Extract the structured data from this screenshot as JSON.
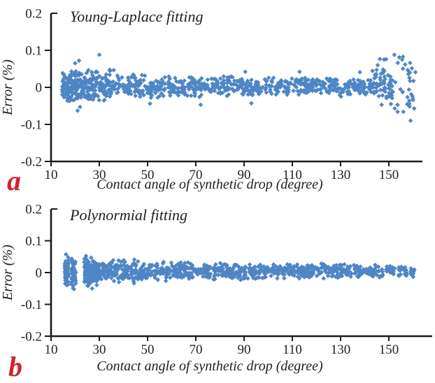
{
  "figure": {
    "background": "#ffffff",
    "colors": {
      "marker": "#4e86c5",
      "axis": "#1a1a1a",
      "text": "#1f1f1f",
      "corner_label_red": "#d2212b"
    },
    "panels": [
      {
        "id": "a",
        "corner_label": "a",
        "title": "Young-Laplace fitting",
        "x_axis": {
          "label": "Contact angle of synthetic drop (degree)",
          "tick_labels": [
            "10",
            "30",
            "50",
            "70",
            "90",
            "110",
            "130",
            "150"
          ],
          "tick_values": [
            10,
            30,
            50,
            70,
            90,
            110,
            130,
            150
          ]
        },
        "y_axis": {
          "label": "Error (%)",
          "tick_labels": [
            "0.2",
            "0.1",
            "0",
            "-0.1",
            "-0.2"
          ],
          "tick_values": [
            0.2,
            0.1,
            0,
            -0.1,
            -0.2
          ]
        }
      },
      {
        "id": "b",
        "corner_label": "b",
        "title": "Polynormial fitting",
        "x_axis": {
          "label": "Contact angle of synthetic drop (degree)",
          "tick_labels": [
            "10",
            "30",
            "50",
            "70",
            "90",
            "110",
            "130",
            "150"
          ],
          "tick_values": [
            10,
            30,
            50,
            70,
            90,
            110,
            130,
            150
          ]
        },
        "y_axis": {
          "label": "Error (%)",
          "tick_labels": [
            "0.2",
            "0.1",
            "0",
            "-0.1",
            "-0.2"
          ],
          "tick_values": [
            0.2,
            0.1,
            0,
            -0.1,
            -0.2
          ]
        }
      }
    ]
  },
  "chart_data": [
    {
      "panel": "a",
      "type": "scatter",
      "title": "Young-Laplace fitting",
      "xlabel": "Contact angle of synthetic drop (degree)",
      "ylabel": "Error (%)",
      "xlim": [
        10,
        162
      ],
      "ylim": [
        -0.2,
        0.2
      ],
      "x_tick_values": [
        10,
        30,
        50,
        70,
        90,
        110,
        130,
        150
      ],
      "x_tick_labels": [
        "10",
        "30",
        "50",
        "70",
        "90",
        "110",
        "130",
        "150"
      ],
      "y_tick_values": [
        0.2,
        0.1,
        0,
        -0.1,
        -0.2
      ],
      "y_tick_labels": [
        "0.2",
        "0.1",
        "0",
        "-0.1",
        "-0.2"
      ],
      "grid": false,
      "legend": false,
      "marker": "diamond",
      "marker_color": "#4e86c5",
      "series": [
        {
          "name": "Young-Laplace fitting error",
          "band_segments": [
            {
              "x": [
                14.3,
                20.8
              ],
              "y": [
                -0.045,
                0.048
              ],
              "n": 130,
              "stripes": 9
            },
            {
              "x": [
                20.8,
                36.0
              ],
              "y": [
                -0.042,
                0.05
              ],
              "n": 170
            },
            {
              "x": [
                36.0,
                60.0
              ],
              "y": [
                -0.033,
                0.038
              ],
              "n": 150
            },
            {
              "x": [
                60.0,
                100.0
              ],
              "y": [
                -0.028,
                0.032
              ],
              "n": 230
            },
            {
              "x": [
                100.0,
                143.0
              ],
              "y": [
                -0.026,
                0.03
              ],
              "n": 240
            },
            {
              "x": [
                143.0,
                151.5
              ],
              "y": [
                -0.04,
                0.055
              ],
              "n": 55
            },
            {
              "x": [
                146.0,
                161.0
              ],
              "y": [
                -0.068,
                0.085
              ],
              "n": 38,
              "uniform": true
            }
          ],
          "outliers": [
            [
              20.0,
              0.065
            ],
            [
              21.6,
              0.072
            ],
            [
              30.0,
              0.088
            ],
            [
              22.0,
              -0.053
            ],
            [
              21.0,
              -0.063
            ],
            [
              51.0,
              -0.044
            ],
            [
              72.0,
              -0.047
            ],
            [
              90.5,
              0.042
            ],
            [
              93.0,
              -0.043
            ],
            [
              113.0,
              0.042
            ],
            [
              138.0,
              0.041
            ],
            [
              152.3,
              0.088
            ],
            [
              148.0,
              0.075
            ],
            [
              155.5,
              0.075
            ],
            [
              145.4,
              0.06
            ],
            [
              158.8,
              0.066
            ],
            [
              161.0,
              0.041
            ],
            [
              153.6,
              -0.047
            ],
            [
              147.0,
              -0.047
            ],
            [
              156.0,
              -0.066
            ],
            [
              160.5,
              -0.057
            ],
            [
              160.0,
              -0.034
            ],
            [
              159.0,
              -0.09
            ]
          ]
        }
      ]
    },
    {
      "panel": "b",
      "type": "scatter",
      "title": "Polynormial fitting",
      "xlabel": "Contact angle of synthetic drop (degree)",
      "ylabel": "Error (%)",
      "xlim": [
        10,
        162
      ],
      "ylim": [
        -0.2,
        0.2
      ],
      "x_tick_values": [
        10,
        30,
        50,
        70,
        90,
        110,
        130,
        150
      ],
      "x_tick_labels": [
        "10",
        "30",
        "50",
        "70",
        "90",
        "110",
        "130",
        "150"
      ],
      "y_tick_values": [
        0.2,
        0.1,
        0,
        -0.1,
        -0.2
      ],
      "y_tick_labels": [
        "0.2",
        "0.1",
        "0",
        "-0.1",
        "-0.2"
      ],
      "grid": false,
      "legend": false,
      "marker": "diamond",
      "marker_color": "#4e86c5",
      "series": [
        {
          "name": "Polynomial fitting error",
          "band_segments": [
            {
              "x": [
                15.6,
                17.4
              ],
              "y": [
                -0.05,
                0.057
              ],
              "n": 65,
              "stripes": 3
            },
            {
              "x": [
                18.2,
                20.4
              ],
              "y": [
                -0.052,
                0.05
              ],
              "n": 60,
              "stripes": 3
            },
            {
              "x": [
                23.6,
                30.0
              ],
              "y": [
                -0.047,
                0.051
              ],
              "n": 150,
              "stripes": 9
            },
            {
              "x": [
                30.0,
                45.0
              ],
              "y": [
                -0.038,
                0.043
              ],
              "n": 150
            },
            {
              "x": [
                45.0,
                70.0
              ],
              "y": [
                -0.03,
                0.037
              ],
              "n": 185
            },
            {
              "x": [
                70.0,
                100.0
              ],
              "y": [
                -0.024,
                0.033
              ],
              "n": 210
            },
            {
              "x": [
                100.0,
                130.0
              ],
              "y": [
                -0.02,
                0.031
              ],
              "n": 190
            },
            {
              "x": [
                130.0,
                147.5
              ],
              "y": [
                -0.016,
                0.028
              ],
              "n": 90
            },
            {
              "x": [
                148.5,
                152.5
              ],
              "y": [
                -0.012,
                0.026
              ],
              "n": 26
            },
            {
              "x": [
                154.0,
                157.5
              ],
              "y": [
                -0.013,
                0.024
              ],
              "n": 22
            },
            {
              "x": [
                159.0,
                160.8
              ],
              "y": [
                -0.016,
                0.022
              ],
              "n": 14
            }
          ],
          "outliers": [
            [
              16.2,
              0.057
            ],
            [
              19.5,
              -0.052
            ],
            [
              27.0,
              -0.05
            ],
            [
              24.5,
              0.052
            ]
          ]
        }
      ]
    }
  ]
}
